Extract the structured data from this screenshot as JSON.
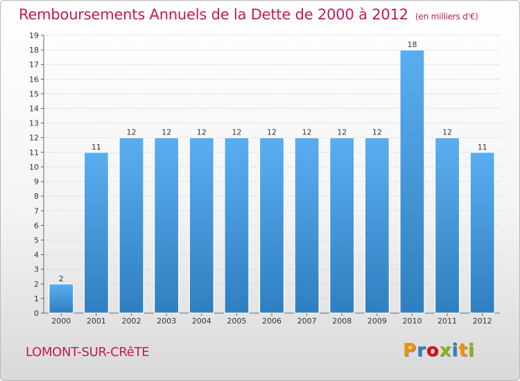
{
  "chart_data": {
    "type": "bar",
    "title": "Remboursements Annuels de la Dette de 2000 à 2012",
    "unit": "(en milliers d'€)",
    "categories": [
      "2000",
      "2001",
      "2002",
      "2003",
      "2004",
      "2005",
      "2006",
      "2007",
      "2008",
      "2009",
      "2010",
      "2011",
      "2012"
    ],
    "values": [
      2,
      11,
      12,
      12,
      12,
      12,
      12,
      12,
      12,
      12,
      18,
      12,
      11
    ],
    "ylim": [
      0,
      19
    ],
    "yticks": [
      0,
      1,
      2,
      3,
      4,
      5,
      6,
      7,
      8,
      9,
      10,
      11,
      12,
      13,
      14,
      15,
      16,
      17,
      18,
      19
    ],
    "grid": true,
    "bar_color": "#4a9de0"
  },
  "footer": {
    "commune": "LOMONT-SUR-CRêTE",
    "logo": "Proxiti",
    "logo_colors": [
      "#f39200",
      "#2e7fc6",
      "#e2001a",
      "#8cb41b",
      "#2e7fc6",
      "#f39200",
      "#8cb41b"
    ]
  }
}
